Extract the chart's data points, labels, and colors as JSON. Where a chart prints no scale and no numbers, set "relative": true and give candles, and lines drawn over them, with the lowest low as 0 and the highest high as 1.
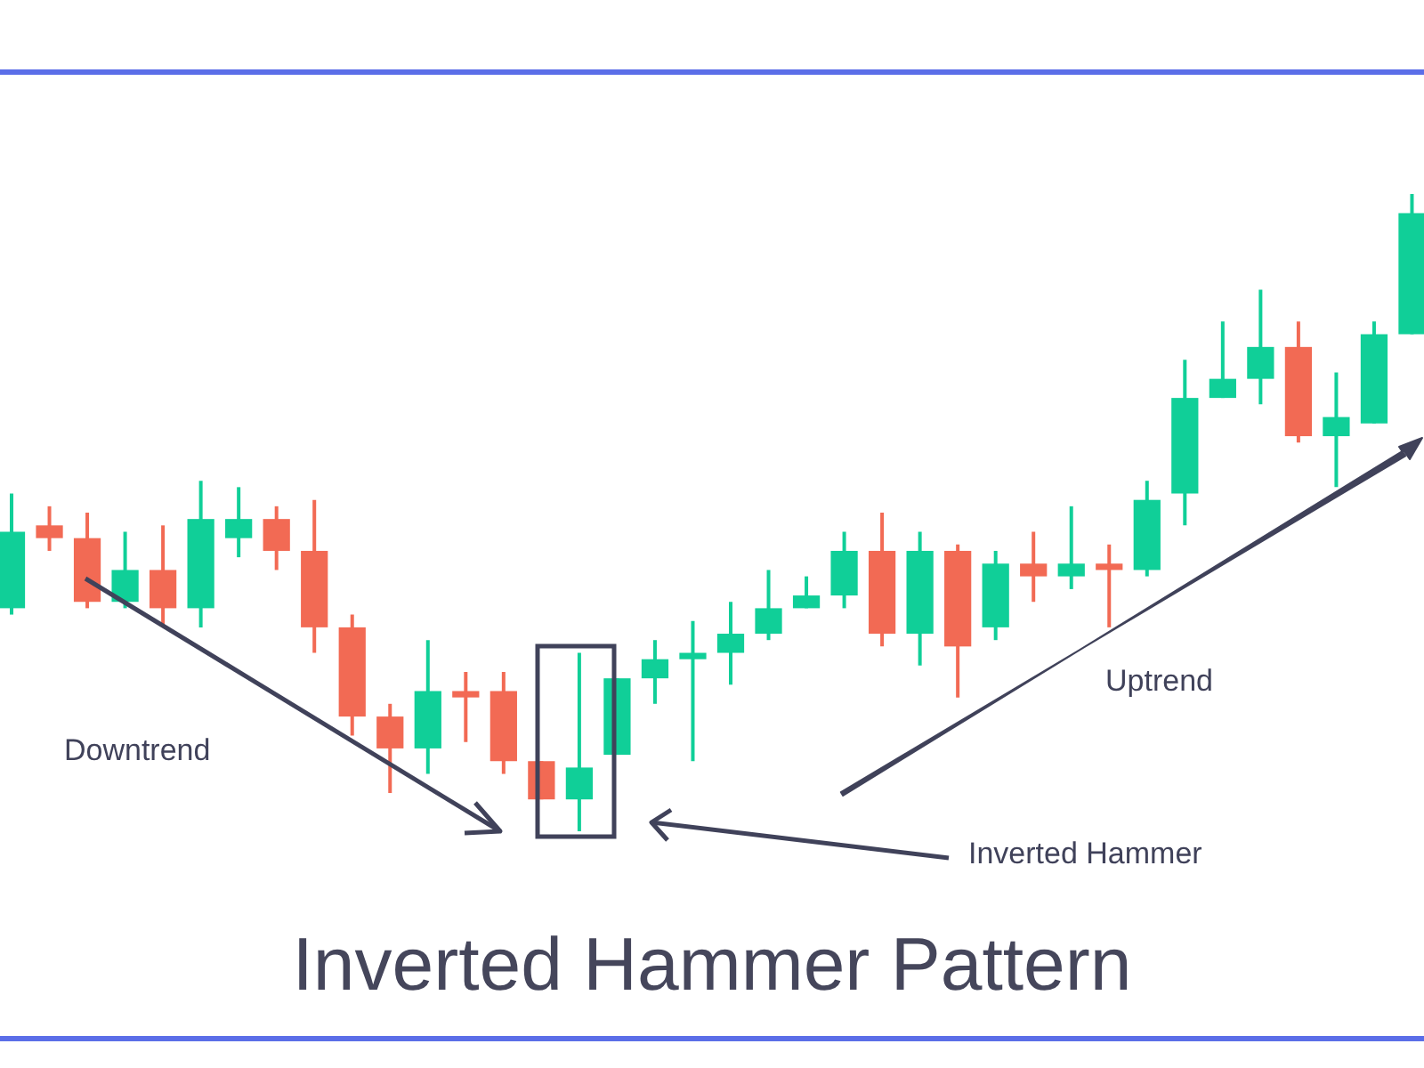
{
  "chart_data": {
    "type": "candlestick",
    "title": "Inverted Hammer Pattern",
    "relative": true,
    "annotations": [
      "Downtrend",
      "Uptrend",
      "Inverted Hammer"
    ],
    "categories": [
      null,
      null,
      null,
      null,
      null,
      null,
      null,
      null,
      null,
      null,
      null,
      null,
      null,
      null,
      null,
      null,
      null,
      null,
      null,
      null,
      null,
      null,
      null,
      null,
      null,
      null,
      null,
      null,
      null,
      null,
      null,
      null,
      null,
      null,
      null,
      null,
      null,
      null
    ],
    "ohlc": [
      [
        0.35,
        0.53,
        0.34,
        0.47
      ],
      [
        0.48,
        0.51,
        0.44,
        0.46
      ],
      [
        0.46,
        0.5,
        0.35,
        0.36
      ],
      [
        0.36,
        0.47,
        0.35,
        0.41
      ],
      [
        0.41,
        0.48,
        0.32,
        0.35
      ],
      [
        0.35,
        0.55,
        0.32,
        0.49
      ],
      [
        0.46,
        0.54,
        0.43,
        0.49
      ],
      [
        0.49,
        0.51,
        0.41,
        0.44
      ],
      [
        0.44,
        0.52,
        0.28,
        0.32
      ],
      [
        0.32,
        0.34,
        0.15,
        0.18
      ],
      [
        0.18,
        0.2,
        0.06,
        0.13
      ],
      [
        0.13,
        0.3,
        0.09,
        0.22
      ],
      [
        0.22,
        0.25,
        0.14,
        0.21
      ],
      [
        0.22,
        0.25,
        0.09,
        0.11
      ],
      [
        0.11,
        0.11,
        0.05,
        0.05
      ],
      [
        0.05,
        0.28,
        0,
        0.1
      ],
      [
        0.12,
        0.24,
        0.12,
        0.24
      ],
      [
        0.24,
        0.3,
        0.2,
        0.27
      ],
      [
        0.27,
        0.33,
        0.11,
        0.28
      ],
      [
        0.28,
        0.36,
        0.23,
        0.31
      ],
      [
        0.31,
        0.41,
        0.3,
        0.35
      ],
      [
        0.35,
        0.4,
        0.35,
        0.37
      ],
      [
        0.37,
        0.47,
        0.35,
        0.44
      ],
      [
        0.44,
        0.5,
        0.29,
        0.31
      ],
      [
        0.31,
        0.47,
        0.26,
        0.44
      ],
      [
        0.44,
        0.45,
        0.21,
        0.29
      ],
      [
        0.32,
        0.44,
        0.3,
        0.42
      ],
      [
        0.42,
        0.47,
        0.36,
        0.4
      ],
      [
        0.4,
        0.51,
        0.38,
        0.42
      ],
      [
        0.42,
        0.45,
        0.32,
        0.41
      ],
      [
        0.41,
        0.55,
        0.4,
        0.52
      ],
      [
        0.53,
        0.74,
        0.48,
        0.68
      ],
      [
        0.68,
        0.8,
        0.68,
        0.71
      ],
      [
        0.71,
        0.85,
        0.67,
        0.76
      ],
      [
        0.76,
        0.8,
        0.61,
        0.62
      ],
      [
        0.62,
        0.72,
        0.54,
        0.65
      ],
      [
        0.64,
        0.8,
        0.64,
        0.78
      ],
      [
        0.78,
        1,
        0.78,
        0.97
      ]
    ],
    "colors": [
      "#10cf98",
      "#f26a54",
      "#f26a54",
      "#10cf98",
      "#f26a54",
      "#10cf98",
      "#10cf98",
      "#f26a54",
      "#f26a54",
      "#f26a54",
      "#f26a54",
      "#10cf98",
      "#f26a54",
      "#f26a54",
      "#f26a54",
      "#10cf98",
      "#10cf98",
      "#10cf98",
      "#10cf98",
      "#10cf98",
      "#10cf98",
      "#10cf98",
      "#10cf98",
      "#f26a54",
      "#10cf98",
      "#f26a54",
      "#10cf98",
      "#f26a54",
      "#10cf98",
      "#f26a54",
      "#10cf98",
      "#10cf98",
      "#10cf98",
      "#10cf98",
      "#f26a54",
      "#10cf98",
      "#10cf98",
      "#10cf98"
    ]
  }
}
